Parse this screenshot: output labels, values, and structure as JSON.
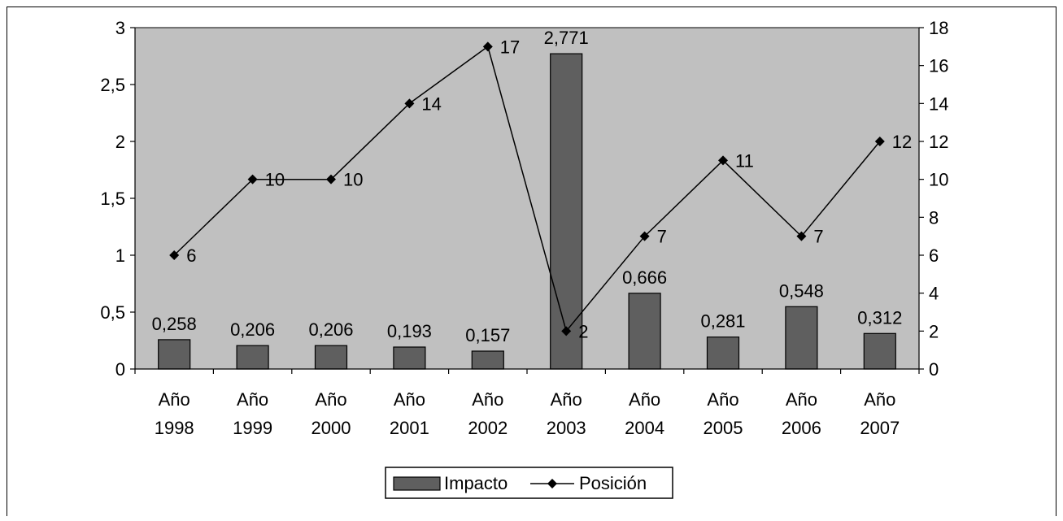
{
  "chart_data": {
    "type": "bar",
    "categories": [
      [
        "Año",
        "1998"
      ],
      [
        "Año",
        "1999"
      ],
      [
        "Año",
        "2000"
      ],
      [
        "Año",
        "2001"
      ],
      [
        "Año",
        "2002"
      ],
      [
        "Año",
        "2003"
      ],
      [
        "Año",
        "2004"
      ],
      [
        "Año",
        "2005"
      ],
      [
        "Año",
        "2006"
      ],
      [
        "Año",
        "2007"
      ]
    ],
    "series": [
      {
        "name": "Impacto",
        "type": "bar",
        "axis": "left",
        "values": [
          0.258,
          0.206,
          0.206,
          0.193,
          0.157,
          2.771,
          0.666,
          0.281,
          0.548,
          0.312
        ],
        "labels": [
          "0,258",
          "0,206",
          "0,206",
          "0,193",
          "0,157",
          "2,771",
          "0,666",
          "0,281",
          "0,548",
          "0,312"
        ]
      },
      {
        "name": "Posición",
        "type": "line",
        "axis": "right",
        "values": [
          6,
          10,
          10,
          14,
          17,
          2,
          7,
          11,
          7,
          12
        ],
        "labels": [
          "6",
          "10",
          "10",
          "14",
          "17",
          "2",
          "7",
          "11",
          "7",
          "12"
        ]
      }
    ],
    "left_axis": {
      "ylim": [
        0,
        3
      ],
      "ticks": [
        0,
        0.5,
        1,
        1.5,
        2,
        2.5,
        3
      ],
      "tick_labels": [
        "0",
        "0,5",
        "1",
        "1,5",
        "2",
        "2,5",
        "3"
      ]
    },
    "right_axis": {
      "ylim": [
        0,
        18
      ],
      "ticks": [
        0,
        2,
        4,
        6,
        8,
        10,
        12,
        14,
        16,
        18
      ],
      "tick_labels": [
        "0",
        "2",
        "4",
        "6",
        "8",
        "10",
        "12",
        "14",
        "16",
        "18"
      ]
    },
    "grid": false,
    "legend_position": "bottom-center",
    "colors": {
      "plot_background": "#c0c0c0",
      "bar_fill": "#5f5f5f",
      "line": "#000000",
      "marker": "#000000"
    }
  }
}
